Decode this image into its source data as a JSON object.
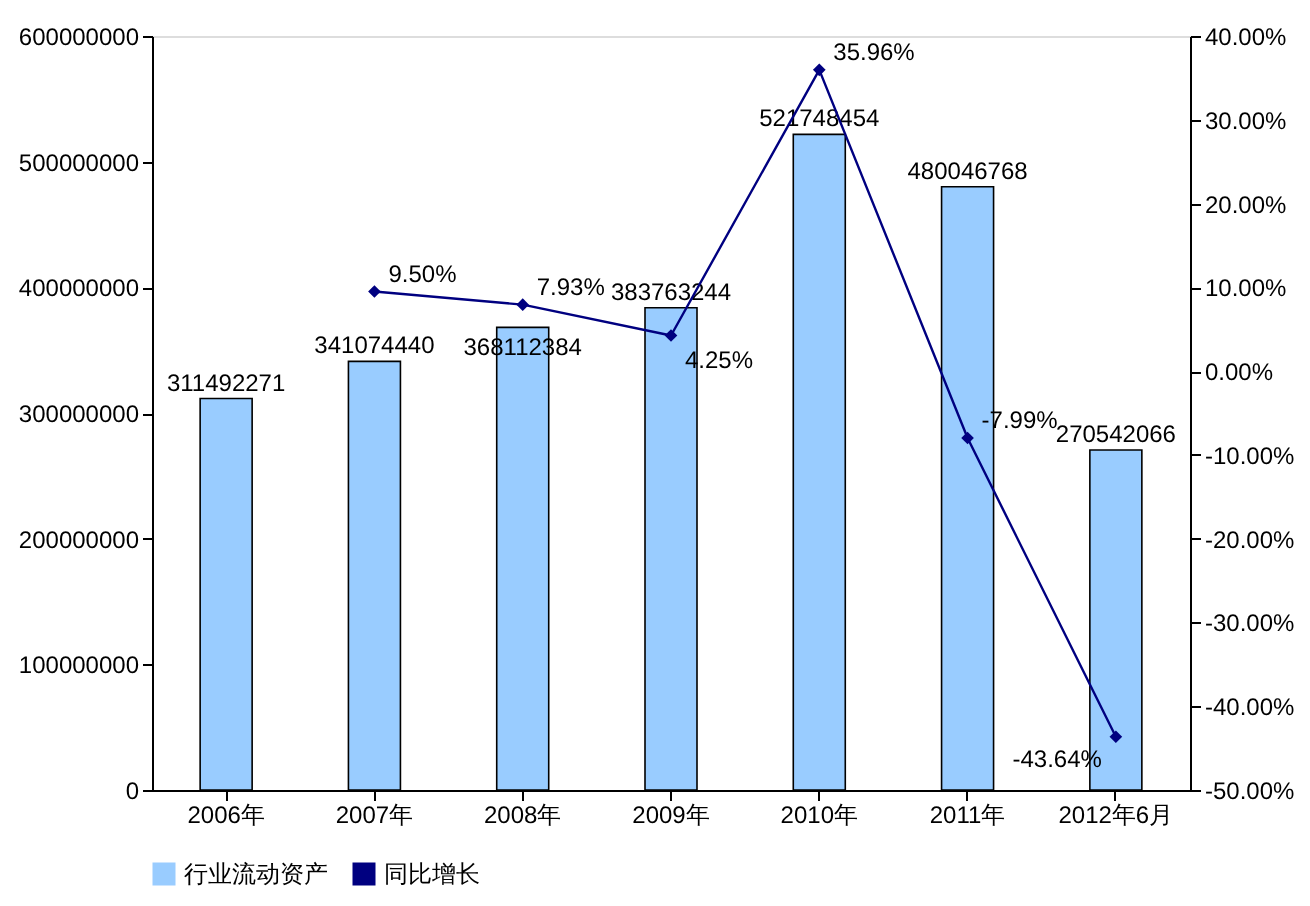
{
  "chart_data": {
    "type": "bar",
    "categories": [
      "2006年",
      "2007年",
      "2008年",
      "2009年",
      "2010年",
      "2011年",
      "2012年6月"
    ],
    "ylim": [
      0,
      600000000
    ],
    "yticks": [
      0,
      100000000,
      200000000,
      300000000,
      400000000,
      500000000,
      600000000
    ],
    "y2lim": [
      -50,
      40
    ],
    "y2ticks": [
      {
        "value": -50,
        "label": "-50.00%"
      },
      {
        "value": -40,
        "label": "-40.00%"
      },
      {
        "value": -30,
        "label": "-30.00%"
      },
      {
        "value": -20,
        "label": "-20.00%"
      },
      {
        "value": -10,
        "label": "-10.00%"
      },
      {
        "value": 0,
        "label": "0.00%"
      },
      {
        "value": 10,
        "label": "10.00%"
      },
      {
        "value": 20,
        "label": "20.00%"
      },
      {
        "value": 30,
        "label": "30.00%"
      },
      {
        "value": 40,
        "label": "40.00%"
      }
    ],
    "grid": false,
    "legend": "bottom",
    "data_labels": true,
    "series": [
      {
        "name": "行业流动资产",
        "color": "#99ccff",
        "values": [
          311492271,
          341074440,
          368112384,
          383763244,
          521748454,
          480046768,
          270542066
        ]
      },
      {
        "name": "同比增长",
        "type": "line",
        "axis": "y2",
        "color": "#000080",
        "marker": "diamond",
        "line_style": "solid",
        "values": [
          null,
          9.5,
          7.93,
          4.25,
          35.96,
          -7.99,
          -43.64
        ],
        "value_labels": [
          null,
          "9.50%",
          "7.93%",
          "4.25%",
          "35.96%",
          "-7.99%",
          "-43.64%"
        ]
      }
    ]
  }
}
